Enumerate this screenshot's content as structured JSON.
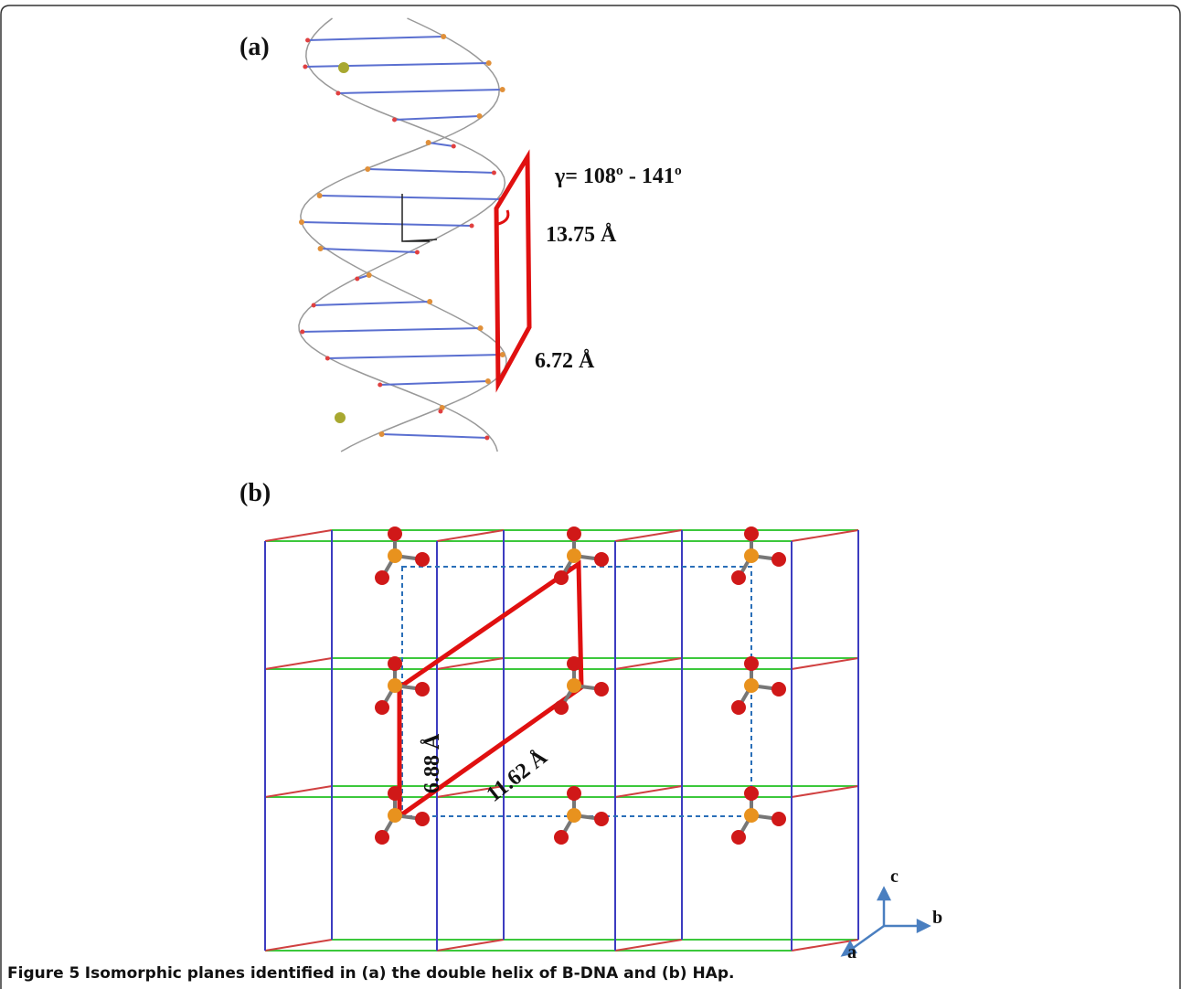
{
  "panel_a": {
    "label": "(a)",
    "angle": "γ= 108º - 141º",
    "length_1": "13.75 Å",
    "length_2": "6.72 Å"
  },
  "panel_b": {
    "label": "(b)",
    "length_1": "6.88 Å",
    "length_2": "11.62 Å",
    "axis_c": "c",
    "axis_b": "b",
    "axis_a": "a"
  },
  "caption": {
    "label": "Figure 5",
    "text": "Isomorphic planes identified in (a) the double helix of B-DNA and (b) HAp."
  }
}
